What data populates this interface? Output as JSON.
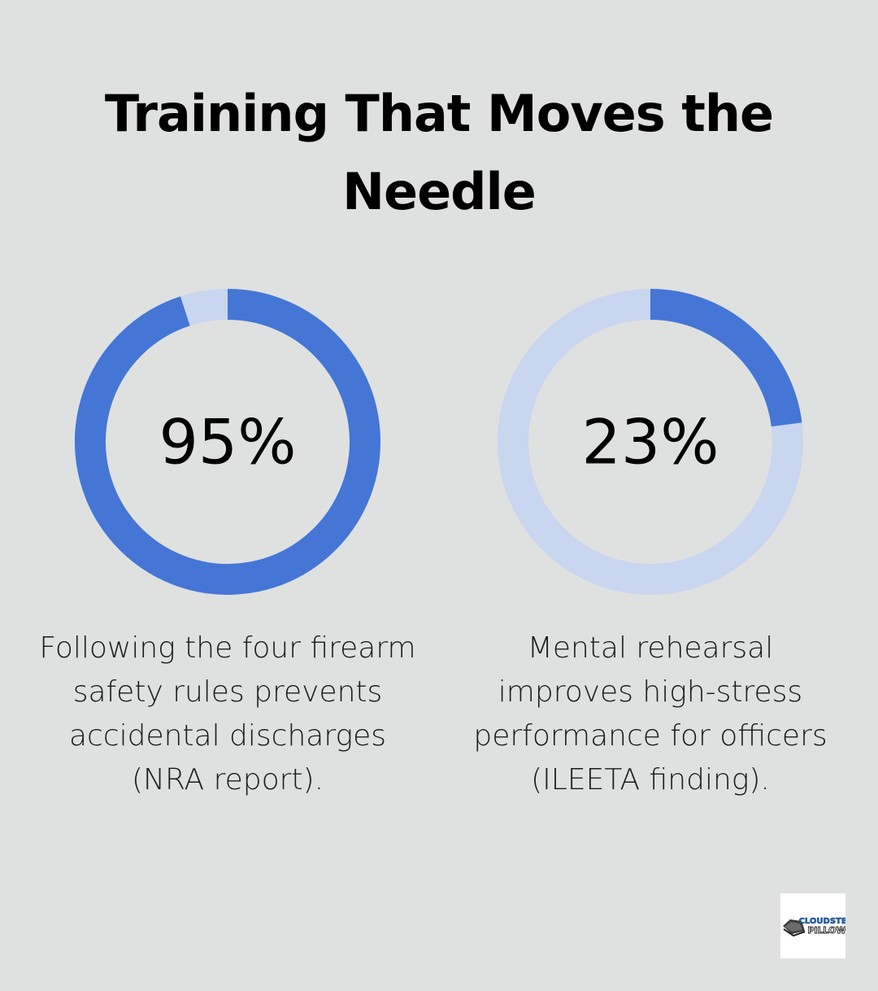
{
  "title": "Training That Moves the Needle",
  "colors": {
    "background": "#dfe1e0",
    "fill": "#4576d6",
    "track": "#c9d6f0"
  },
  "chart_data": [
    {
      "type": "pie",
      "variant": "donut",
      "value_label": "95%",
      "values": [
        95,
        5
      ],
      "caption": "Following the four firearm safety rules prevents accidental discharges (NRA report)."
    },
    {
      "type": "pie",
      "variant": "donut",
      "value_label": "23%",
      "values": [
        23,
        77
      ],
      "caption": "Mental rehearsal improves high-stress performance for officers (ILEETA finding)."
    }
  ],
  "logo": {
    "name": "cloudster-pillow-logo",
    "text_line1": "CLOUDSTER",
    "text_line2": "PILLOW"
  }
}
